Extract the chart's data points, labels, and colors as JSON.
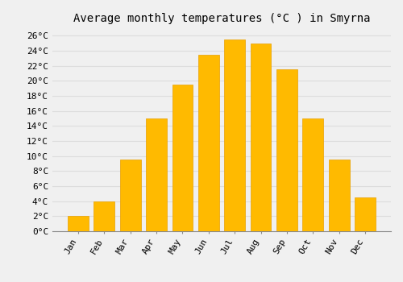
{
  "title": "Average monthly temperatures (°C ) in Smyrna",
  "months": [
    "Jan",
    "Feb",
    "Mar",
    "Apr",
    "May",
    "Jun",
    "Jul",
    "Aug",
    "Sep",
    "Oct",
    "Nov",
    "Dec"
  ],
  "values": [
    2,
    4,
    9.5,
    15,
    19.5,
    23.5,
    25.5,
    25,
    21.5,
    15,
    9.5,
    4.5
  ],
  "bar_color": "#FFBA00",
  "bar_edge_color": "#E8A000",
  "background_color": "#F0F0F0",
  "grid_color": "#DDDDDD",
  "ylim": [
    0,
    27
  ],
  "yticks": [
    0,
    2,
    4,
    6,
    8,
    10,
    12,
    14,
    16,
    18,
    20,
    22,
    24,
    26
  ],
  "title_fontsize": 10,
  "tick_fontsize": 8,
  "font_family": "monospace"
}
